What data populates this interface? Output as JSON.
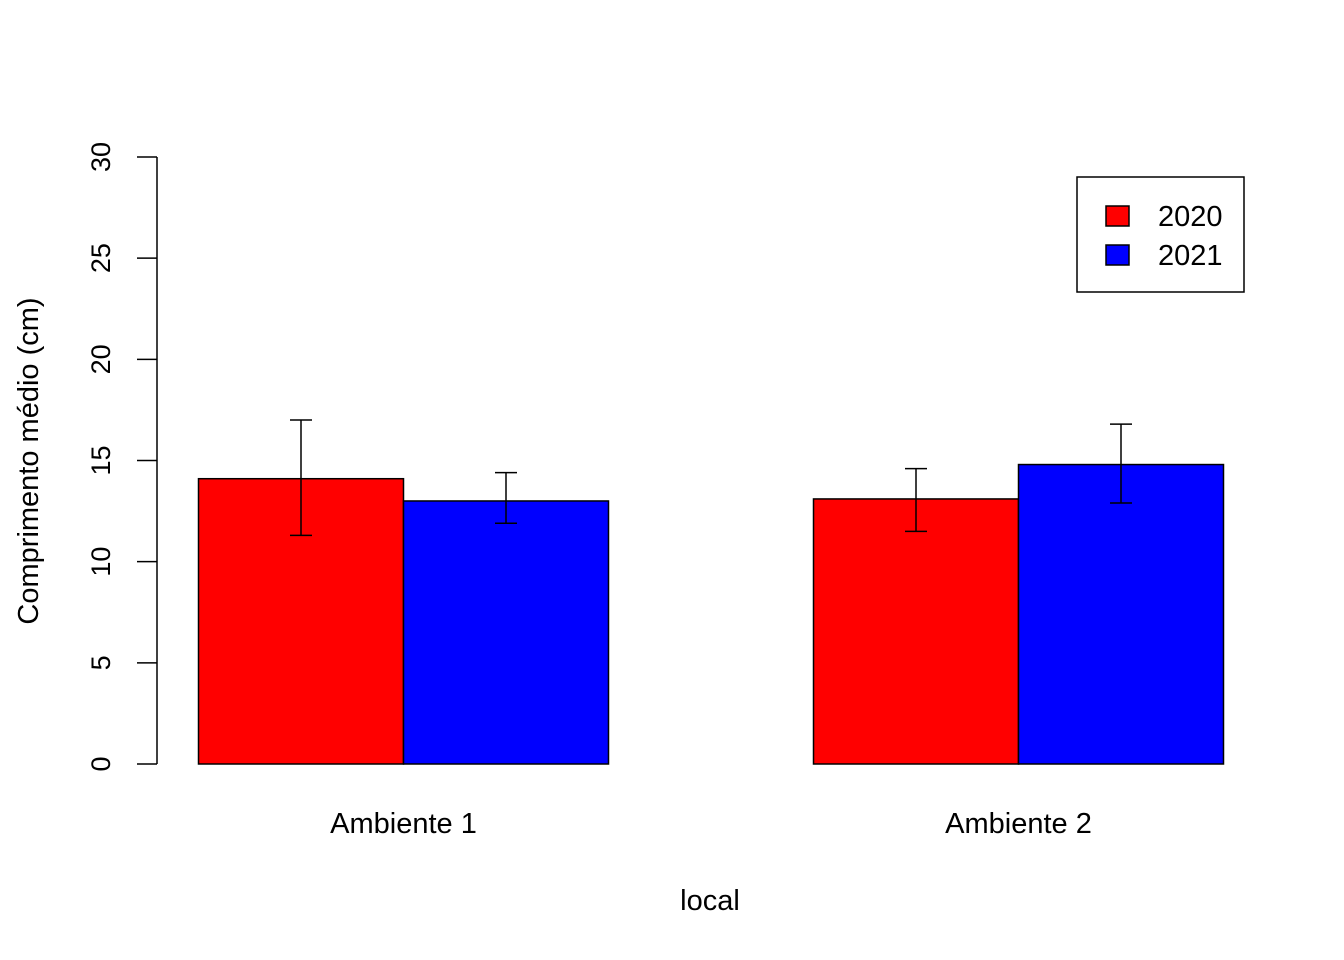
{
  "chart_data": {
    "type": "bar",
    "title": "",
    "xlabel": "local",
    "ylabel": "Comprimento médio (cm)",
    "ylim": [
      0,
      30
    ],
    "yticks": [
      0,
      5,
      10,
      15,
      20,
      25,
      30
    ],
    "grid": false,
    "legend_position": "top-right",
    "categories": [
      "Ambiente 1",
      "Ambiente 2"
    ],
    "series": [
      {
        "name": "2020",
        "color": "#ff0000",
        "values": [
          14.1,
          13.1
        ],
        "error_low": [
          11.3,
          11.5
        ],
        "error_high": [
          17.0,
          14.6
        ]
      },
      {
        "name": "2021",
        "color": "#0000ff",
        "values": [
          13.0,
          14.8
        ],
        "error_low": [
          11.9,
          12.9
        ],
        "error_high": [
          14.4,
          16.8
        ]
      }
    ]
  }
}
